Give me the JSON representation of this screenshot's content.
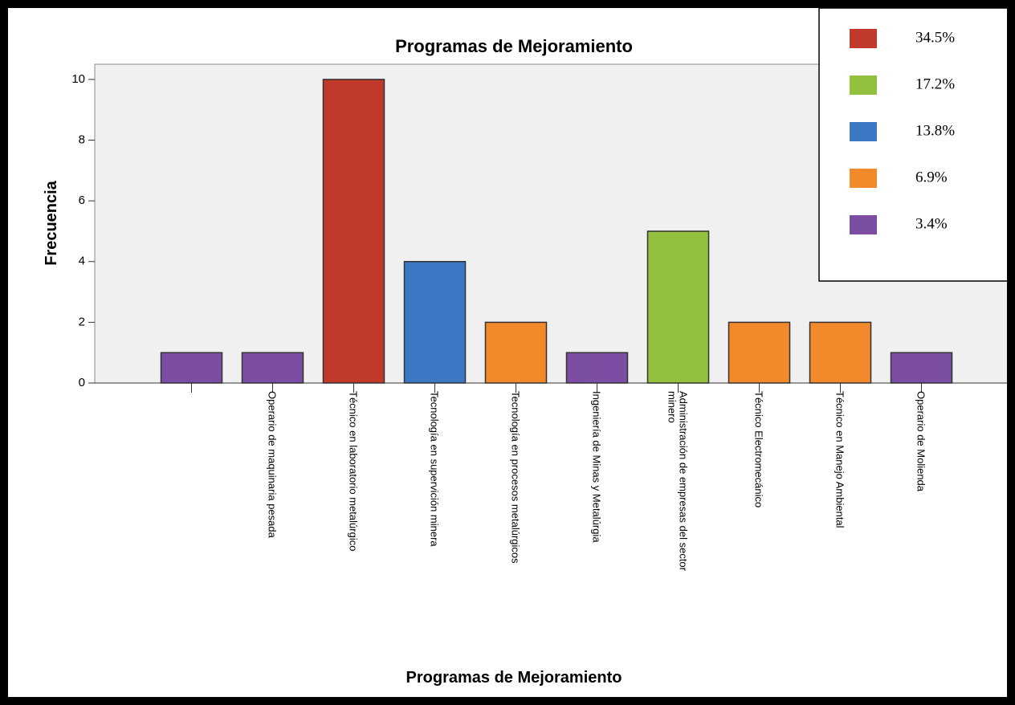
{
  "chart_data": {
    "type": "bar",
    "title": "Programas de Mejoramiento",
    "x_label": "Programas de Mejoramiento",
    "y_label": "Frecuencia",
    "categories": [
      null,
      "Operario de maquinaria pesada",
      "Técnico en laboratorio metalúrgico",
      "Tecnología en supervición minera",
      "Tecnología en procesos metalúrgicos",
      "Ingeniería de Minas y Metalúrgia",
      "Administración de empresas del sector minero",
      "Técnico Electromecánico",
      "Técnico en Manejo Ambiental",
      "Operario de Molienda"
    ],
    "values": [
      1,
      1,
      10,
      4,
      2,
      1,
      5,
      2,
      2,
      1
    ],
    "colors": [
      "#7b4ea3",
      "#7b4ea3",
      "#c0392b",
      "#3a78c3",
      "#f28a2c",
      "#7b4ea3",
      "#93c13e",
      "#f28a2c",
      "#f28a2c",
      "#7b4ea3"
    ],
    "ylim": [
      0,
      10.5
    ],
    "yticks": [
      0,
      2,
      4,
      6,
      8,
      10
    ],
    "legend": [
      {
        "label": "34.5%",
        "color": "#c0392b"
      },
      {
        "label": "17.2%",
        "color": "#93c13e"
      },
      {
        "label": "13.8%",
        "color": "#3a78c3"
      },
      {
        "label": "6.9%",
        "color": "#f28a2c"
      },
      {
        "label": "3.4%",
        "color": "#7b4ea3"
      }
    ]
  }
}
